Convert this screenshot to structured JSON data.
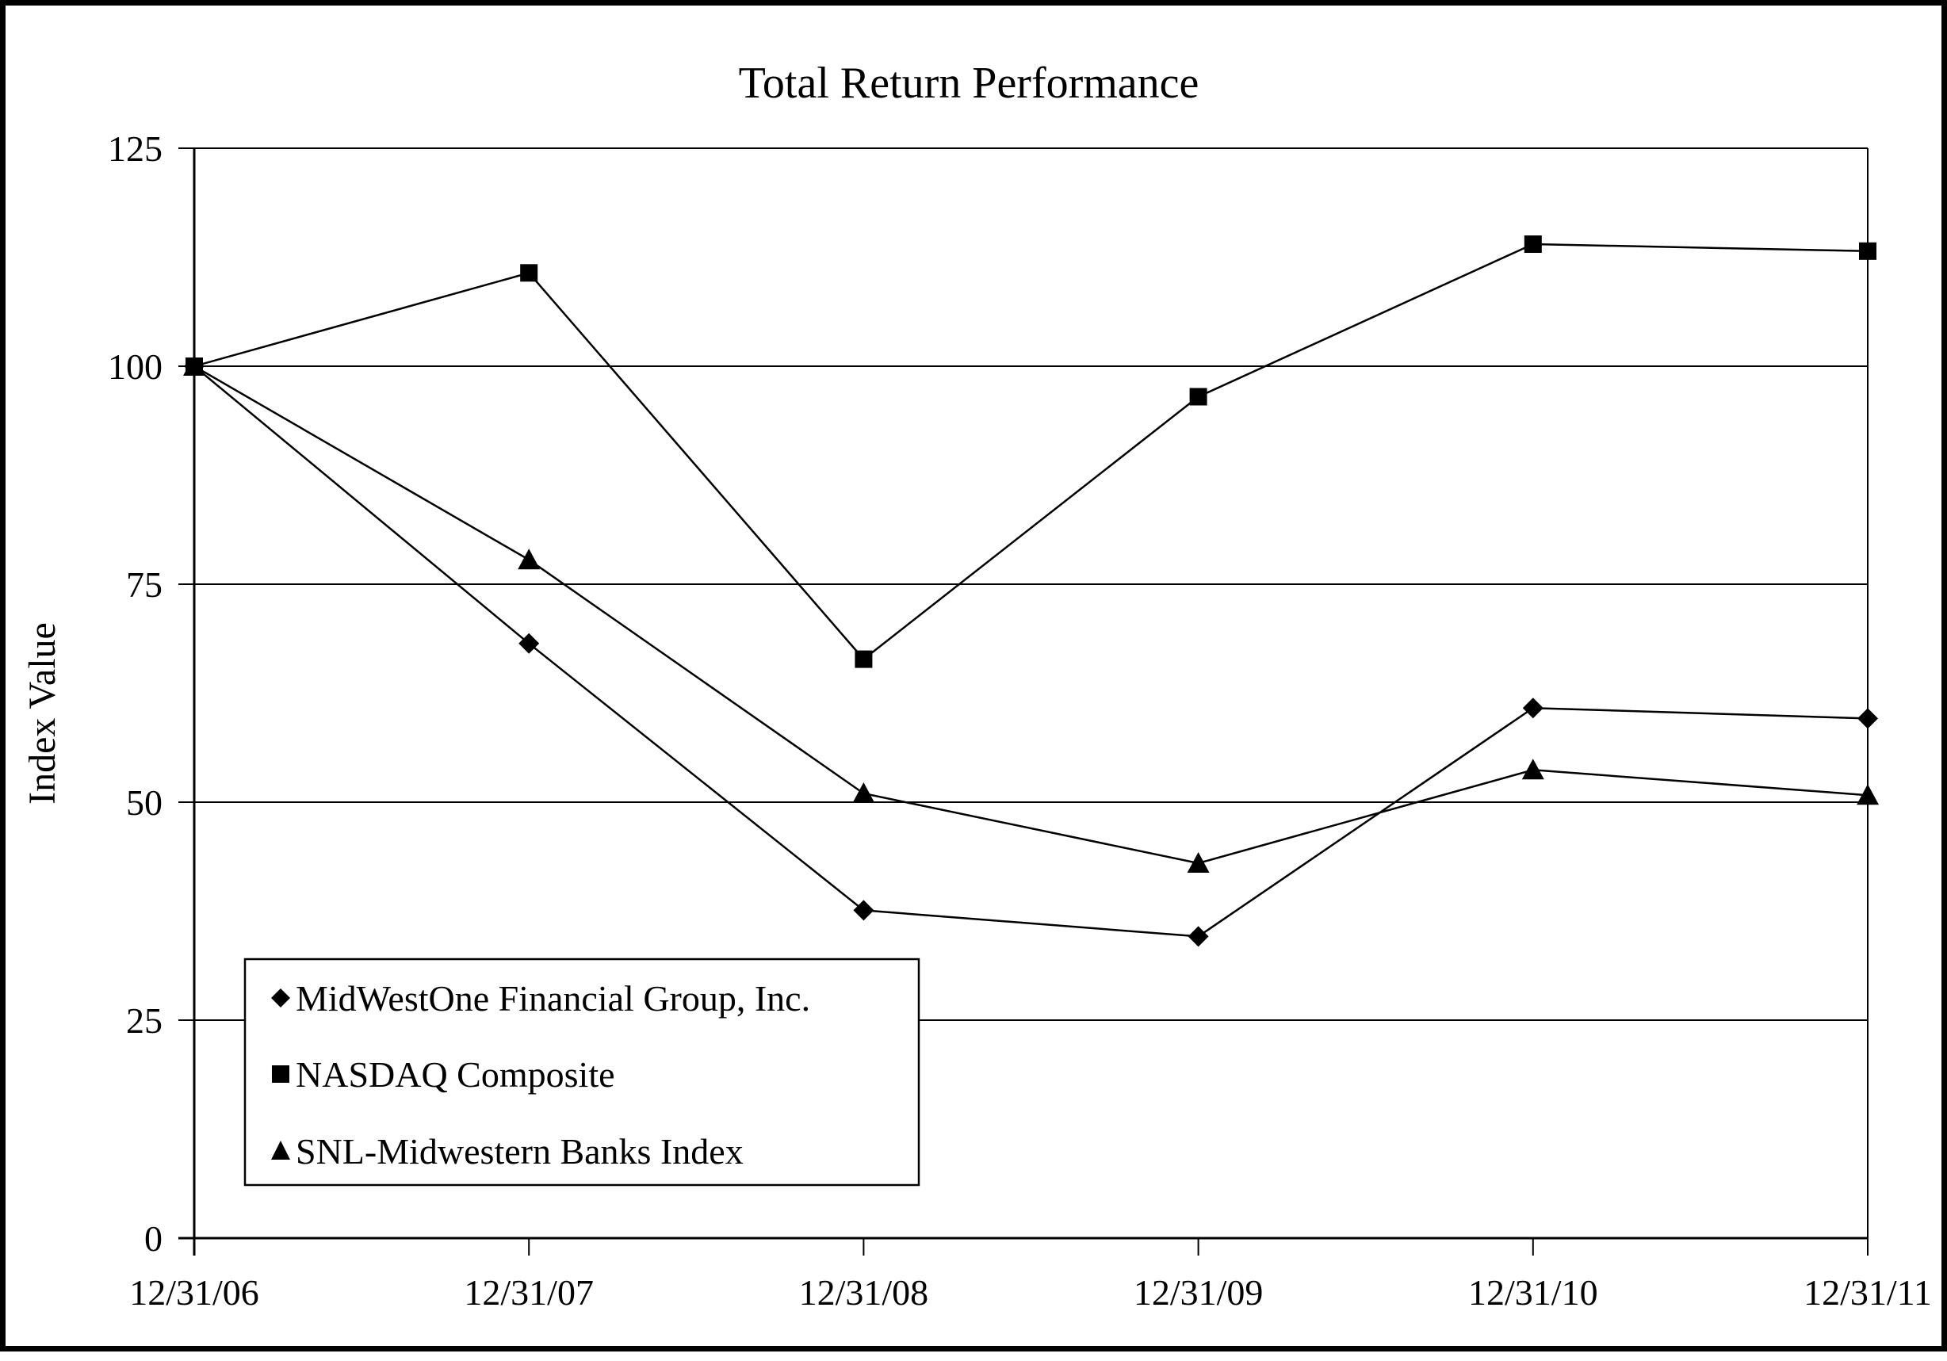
{
  "title": "Total Return Performance",
  "y_axis_label": "Index Value",
  "chart_data": {
    "type": "line",
    "title": "Total Return Performance",
    "xlabel": "",
    "ylabel": "Index Value",
    "x": [
      "12/31/06",
      "12/31/07",
      "12/31/08",
      "12/31/09",
      "12/31/10",
      "12/31/11"
    ],
    "y_ticks": [
      0,
      25,
      50,
      75,
      100,
      125
    ],
    "ylim": [
      0,
      125
    ],
    "grid": "horizontal",
    "legend_position": "inside-bottom-left",
    "line_color": "#000000",
    "background_color": "#ffffff",
    "series": [
      {
        "name": "MidWestOne Financial Group, Inc.",
        "marker": "diamond",
        "values": [
          100,
          68.2,
          37.6,
          34.6,
          60.8,
          59.6
        ]
      },
      {
        "name": "NASDAQ Composite",
        "marker": "square",
        "values": [
          100,
          110.7,
          66.4,
          96.5,
          114.0,
          113.2
        ]
      },
      {
        "name": "SNL-Midwestern Banks Index",
        "marker": "triangle",
        "values": [
          100,
          77.8,
          51.0,
          43.0,
          53.7,
          50.8
        ]
      }
    ]
  }
}
